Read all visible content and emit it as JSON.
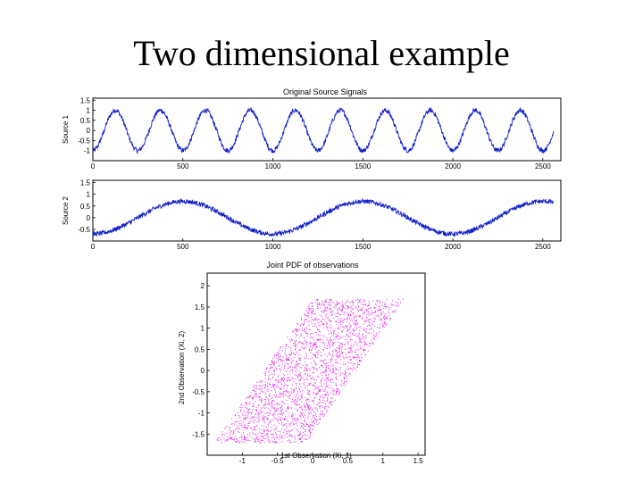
{
  "slide": {
    "title": "Two dimensional example"
  },
  "colors": {
    "signal": "#1020c8",
    "scatter": "#e020e0",
    "axes": "#000000"
  },
  "chart_data": [
    {
      "type": "line",
      "title": "Original Source Signals",
      "ylabel": "Source 1",
      "xlim": [
        0,
        2600
      ],
      "ylim": [
        -1.5,
        1.6
      ],
      "xticks": [
        "0",
        "500",
        "1000",
        "1500",
        "2000",
        "2500"
      ],
      "yticks": [
        "-1",
        "-0.5",
        "0",
        "0.5",
        "1",
        "1.5"
      ],
      "series": [
        {
          "period": 250,
          "amplitude": 1.0,
          "phase_deg": -90,
          "noise": 0.12,
          "x_end": 2560
        }
      ]
    },
    {
      "type": "line",
      "title": "",
      "ylabel": "Source 2",
      "xlim": [
        0,
        2600
      ],
      "ylim": [
        -1,
        1.6
      ],
      "xticks": [
        "0",
        "500",
        "1000",
        "1500",
        "2000",
        "2500"
      ],
      "yticks": [
        "-0.5",
        "0",
        "0.5",
        "1",
        "1.5"
      ],
      "series": [
        {
          "period": 1000,
          "amplitude": 0.7,
          "phase_deg": -90,
          "noise": 0.1,
          "x_end": 2560
        }
      ]
    },
    {
      "type": "scatter",
      "title": "Joint PDF of observations",
      "xlabel": "1st Observation (Xi, 1)",
      "ylabel": "2nd Observation (Xi, 2)",
      "xlim": [
        -1.5,
        1.6
      ],
      "ylim": [
        -2,
        2.3
      ],
      "xticks": [
        "-1",
        "-0.5",
        "0",
        "0.5",
        "1",
        "1.5"
      ],
      "yticks": [
        "-1.5",
        "-1",
        "-0.5",
        "0",
        "0.5",
        "1",
        "1.5",
        "2"
      ],
      "n_points": 2500,
      "x_range": [
        -1.4,
        1.3
      ],
      "parallelogram": {
        "bottom_y": -1.7,
        "top_y": 1.7,
        "bottom_x": [
          -1.4,
          -0.1
        ],
        "top_x": [
          0.0,
          1.3
        ]
      }
    }
  ]
}
